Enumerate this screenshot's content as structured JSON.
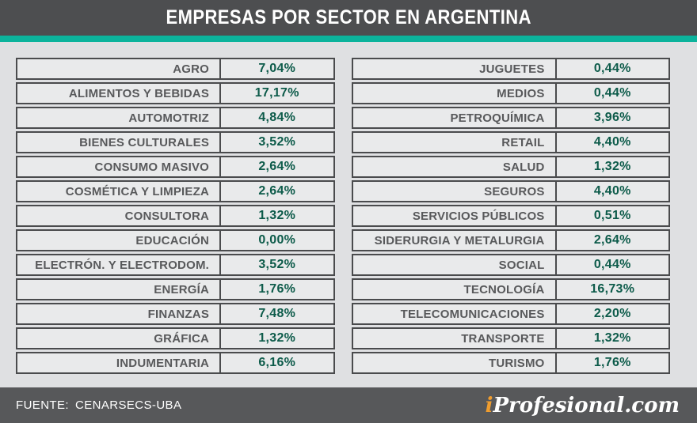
{
  "title": "EMPRESAS POR SECTOR EN ARGENTINA",
  "colors": {
    "accent_teal": "#0cb39c",
    "value_green": "#0d5b4a",
    "logo_orange": "#f09d2e",
    "header_gray": "#4d4e50",
    "footer_gray": "#57585a",
    "cell_gray": "#e9eaeb",
    "border_gray": "#4a4b4d"
  },
  "tables": {
    "left": {
      "rows": [
        {
          "name": "AGRO",
          "value": "7,04%"
        },
        {
          "name": "ALIMENTOS Y BEBIDAS",
          "value": "17,17%"
        },
        {
          "name": "AUTOMOTRIZ",
          "value": "4,84%"
        },
        {
          "name": "BIENES CULTURALES",
          "value": "3,52%"
        },
        {
          "name": "CONSUMO MASIVO",
          "value": "2,64%"
        },
        {
          "name": "COSMÉTICA Y LIMPIEZA",
          "value": "2,64%"
        },
        {
          "name": "CONSULTORA",
          "value": "1,32%"
        },
        {
          "name": "EDUCACIÓN",
          "value": "0,00%"
        },
        {
          "name": "ELECTRÓN. Y ELECTRODOM.",
          "value": "3,52%"
        },
        {
          "name": "ENERGÍA",
          "value": "1,76%"
        },
        {
          "name": "FINANZAS",
          "value": "7,48%"
        },
        {
          "name": "GRÁFICA",
          "value": "1,32%"
        },
        {
          "name": "INDUMENTARIA",
          "value": "6,16%"
        }
      ]
    },
    "right": {
      "rows": [
        {
          "name": "JUGUETES",
          "value": "0,44%"
        },
        {
          "name": "MEDIOS",
          "value": "0,44%"
        },
        {
          "name": "PETROQUÍMICA",
          "value": "3,96%"
        },
        {
          "name": "RETAIL",
          "value": "4,40%"
        },
        {
          "name": "SALUD",
          "value": "1,32%"
        },
        {
          "name": "SEGUROS",
          "value": "4,40%"
        },
        {
          "name": "SERVICIOS PÚBLICOS",
          "value": "0,51%"
        },
        {
          "name": "SIDERURGIA Y METALURGIA",
          "value": "2,64%"
        },
        {
          "name": "SOCIAL",
          "value": "0,44%"
        },
        {
          "name": "TECNOLOGÍA",
          "value": "16,73%"
        },
        {
          "name": "TELECOMUNICACIONES",
          "value": "2,20%"
        },
        {
          "name": "TRANSPORTE",
          "value": "1,32%"
        },
        {
          "name": "TURISMO",
          "value": "1,76%"
        }
      ]
    }
  },
  "footer": {
    "source_label": "FUENTE:",
    "source_value": "CENARSECS-UBA",
    "logo_i": "i",
    "logo_rest": "Profesional.com"
  },
  "chart_data": {
    "type": "table",
    "title": "EMPRESAS POR SECTOR EN ARGENTINA",
    "unit": "%",
    "value_format": "comma decimal separator",
    "source": "CENARSECS-UBA",
    "series": [
      {
        "name": "AGRO",
        "value": 7.04
      },
      {
        "name": "ALIMENTOS Y BEBIDAS",
        "value": 17.17
      },
      {
        "name": "AUTOMOTRIZ",
        "value": 4.84
      },
      {
        "name": "BIENES CULTURALES",
        "value": 3.52
      },
      {
        "name": "CONSUMO MASIVO",
        "value": 2.64
      },
      {
        "name": "COSMÉTICA Y LIMPIEZA",
        "value": 2.64
      },
      {
        "name": "CONSULTORA",
        "value": 1.32
      },
      {
        "name": "EDUCACIÓN",
        "value": 0.0
      },
      {
        "name": "ELECTRÓN. Y ELECTRODOM.",
        "value": 3.52
      },
      {
        "name": "ENERGÍA",
        "value": 1.76
      },
      {
        "name": "FINANZAS",
        "value": 7.48
      },
      {
        "name": "GRÁFICA",
        "value": 1.32
      },
      {
        "name": "INDUMENTARIA",
        "value": 6.16
      },
      {
        "name": "JUGUETES",
        "value": 0.44
      },
      {
        "name": "MEDIOS",
        "value": 0.44
      },
      {
        "name": "PETROQUÍMICA",
        "value": 3.96
      },
      {
        "name": "RETAIL",
        "value": 4.4
      },
      {
        "name": "SALUD",
        "value": 1.32
      },
      {
        "name": "SEGUROS",
        "value": 4.4
      },
      {
        "name": "SERVICIOS PÚBLICOS",
        "value": 0.51
      },
      {
        "name": "SIDERURGIA Y METALURGIA",
        "value": 2.64
      },
      {
        "name": "SOCIAL",
        "value": 0.44
      },
      {
        "name": "TECNOLOGÍA",
        "value": 16.73
      },
      {
        "name": "TELECOMUNICACIONES",
        "value": 2.2
      },
      {
        "name": "TRANSPORTE",
        "value": 1.32
      },
      {
        "name": "TURISMO",
        "value": 1.76
      }
    ]
  }
}
